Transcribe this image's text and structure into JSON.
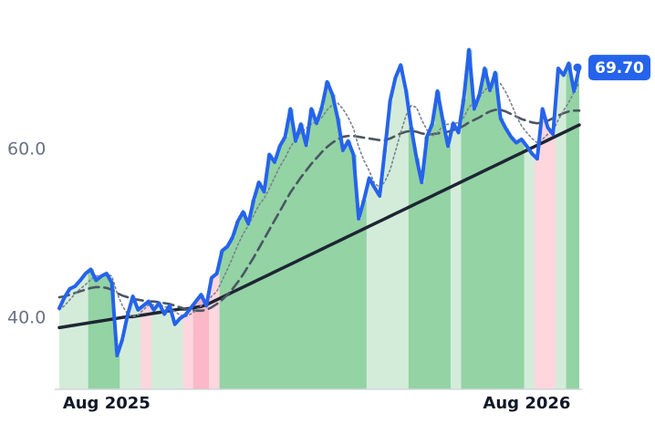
{
  "chart_data": {
    "type": "line",
    "categories": [
      null,
      null,
      null,
      null,
      null,
      null,
      null,
      null,
      null,
      "Aug 2025",
      null,
      null,
      null,
      null,
      null,
      null,
      null,
      null,
      null,
      null,
      null,
      null,
      null,
      null,
      null,
      null,
      null,
      null,
      null,
      null,
      null,
      null,
      null,
      null,
      null,
      null,
      null,
      null,
      null,
      null,
      null,
      null,
      null,
      null,
      null,
      null,
      null,
      null,
      null,
      null,
      null,
      null,
      null,
      null,
      null,
      null,
      null,
      null,
      null,
      null,
      null,
      null,
      null,
      null,
      null,
      null,
      null,
      null,
      null,
      null,
      null,
      null,
      null,
      null,
      null,
      null,
      null,
      null,
      null,
      null,
      null,
      null,
      null,
      null,
      null,
      null,
      null,
      null,
      null,
      "Aug 2026",
      null,
      null,
      null,
      null,
      null,
      null,
      null,
      null,
      null,
      null
    ],
    "series": [
      {
        "color": "#2563eb",
        "style": "solid",
        "width": 4,
        "values": [
          41.2,
          42.5,
          43.5,
          43.8,
          44.5,
          45.3,
          45.8,
          44.5,
          45.0,
          45.3,
          44.2,
          35.6,
          37.5,
          40.4,
          42.6,
          41.0,
          41.5,
          42.0,
          41.0,
          41.8,
          40.5,
          41.5,
          39.3,
          40.0,
          40.4,
          41.2,
          42.0,
          42.8,
          41.5,
          44.8,
          45.3,
          48.0,
          48.5,
          49.6,
          51.5,
          52.6,
          51.2,
          54.0,
          56.1,
          55.0,
          59.4,
          58.5,
          60.4,
          61.5,
          64.8,
          61.0,
          63.0,
          60.5,
          64.8,
          63.1,
          65.0,
          68.0,
          66.5,
          63.7,
          59.9,
          61.0,
          59.4,
          51.8,
          54.0,
          56.6,
          55.5,
          54.5,
          60.0,
          65.8,
          68.5,
          70.0,
          67.0,
          62.6,
          59.0,
          56.1,
          61.5,
          63.0,
          66.9,
          63.5,
          60.4,
          63.1,
          62.0,
          66.0,
          71.8,
          64.8,
          66.5,
          69.6,
          67.0,
          69.1,
          63.7,
          62.5,
          61.5,
          60.8,
          61.2,
          60.4,
          59.5,
          58.9,
          64.8,
          62.6,
          61.8,
          69.6,
          68.8,
          70.2,
          66.9,
          69.7
        ],
        "value_labels": [
          null,
          null,
          null,
          null,
          null,
          null,
          null,
          null,
          null,
          null,
          null,
          null,
          null,
          null,
          null,
          null,
          null,
          null,
          null,
          null,
          null,
          null,
          null,
          null,
          null,
          null,
          null,
          null,
          null,
          null,
          null,
          null,
          null,
          null,
          null,
          null,
          null,
          null,
          null,
          null,
          null,
          null,
          null,
          null,
          null,
          null,
          null,
          null,
          null,
          null,
          null,
          null,
          null,
          null,
          null,
          null,
          null,
          null,
          null,
          null,
          null,
          null,
          null,
          null,
          null,
          null,
          null,
          null,
          null,
          null,
          null,
          null,
          null,
          null,
          null,
          null,
          null,
          null,
          null,
          null,
          null,
          null,
          null,
          null,
          null,
          null,
          null,
          null,
          null,
          null,
          null,
          null,
          null,
          null,
          null,
          null,
          null,
          null,
          null,
          "69.70"
        ]
      },
      {
        "color": "#7b8190",
        "style": "dotted",
        "width": 1.6,
        "values": [
          41.0,
          41.5,
          42.2,
          42.9,
          43.5,
          44.0,
          44.6,
          45.0,
          45.1,
          45.2,
          45.0,
          43.0,
          41.5,
          40.5,
          40.2,
          40.4,
          41.0,
          41.6,
          41.6,
          41.6,
          41.4,
          41.2,
          40.8,
          40.4,
          40.2,
          40.5,
          40.9,
          41.5,
          42.0,
          42.6,
          43.2,
          44.5,
          45.8,
          47.2,
          48.7,
          50.0,
          51.0,
          52.2,
          53.4,
          54.2,
          55.4,
          56.7,
          58.0,
          59.0,
          60.3,
          61.2,
          62.0,
          62.5,
          63.0,
          63.3,
          63.8,
          64.7,
          65.3,
          65.5,
          64.8,
          63.8,
          62.5,
          60.3,
          58.7,
          57.5,
          56.0,
          55.5,
          56.2,
          57.6,
          59.8,
          62.0,
          64.0,
          65.2,
          65.0,
          63.5,
          62.3,
          61.6,
          62.0,
          62.8,
          63.0,
          63.0,
          63.2,
          63.8,
          65.0,
          65.6,
          66.2,
          67.0,
          67.6,
          68.0,
          67.8,
          66.8,
          65.5,
          64.0,
          62.8,
          62.0,
          61.3,
          60.8,
          61.2,
          61.8,
          62.2,
          63.5,
          64.6,
          65.6,
          66.8,
          67.9
        ]
      },
      {
        "color": "#4b5563",
        "style": "dashed",
        "width": 2.6,
        "values": [
          42.5,
          42.6,
          42.8,
          43.0,
          43.2,
          43.4,
          43.6,
          43.7,
          43.7,
          43.6,
          43.4,
          43.0,
          42.7,
          42.5,
          42.3,
          42.2,
          42.1,
          42.0,
          42.0,
          41.9,
          41.8,
          41.7,
          41.5,
          41.3,
          41.1,
          41.0,
          40.9,
          40.9,
          41.0,
          41.3,
          41.7,
          42.2,
          42.8,
          43.5,
          44.3,
          45.2,
          46.2,
          47.2,
          48.3,
          49.4,
          50.5,
          51.6,
          52.7,
          53.8,
          54.9,
          55.8,
          56.7,
          57.5,
          58.3,
          59.0,
          59.7,
          60.3,
          60.8,
          61.2,
          61.5,
          61.6,
          61.6,
          61.5,
          61.4,
          61.3,
          61.2,
          61.1,
          61.1,
          61.3,
          61.6,
          61.9,
          62.1,
          62.2,
          62.1,
          61.9,
          61.8,
          61.8,
          61.9,
          62.0,
          62.1,
          62.3,
          62.5,
          62.8,
          63.2,
          63.5,
          63.8,
          64.2,
          64.5,
          64.7,
          64.7,
          64.5,
          64.2,
          63.9,
          63.6,
          63.4,
          63.2,
          63.1,
          63.2,
          63.4,
          63.7,
          64.0,
          64.3,
          64.5,
          64.6,
          64.6
        ]
      },
      {
        "color": "#1e2533",
        "style": "solid",
        "width": 3.5,
        "values": [
          38.9,
          39.0,
          39.1,
          39.2,
          39.3,
          39.4,
          39.5,
          39.6,
          39.7,
          39.8,
          39.9,
          40.0,
          40.1,
          40.2,
          40.2,
          40.3,
          40.4,
          40.5,
          40.6,
          40.7,
          40.8,
          40.9,
          41.0,
          41.1,
          41.1,
          41.2,
          41.3,
          41.4,
          41.6,
          41.9,
          42.2,
          42.5,
          42.8,
          43.1,
          43.4,
          43.7,
          44.0,
          44.3,
          44.6,
          44.9,
          45.2,
          45.5,
          45.8,
          46.1,
          46.4,
          46.7,
          47.0,
          47.3,
          47.6,
          47.9,
          48.2,
          48.5,
          48.8,
          49.1,
          49.4,
          49.7,
          50.0,
          50.3,
          50.6,
          50.9,
          51.2,
          51.5,
          51.8,
          52.1,
          52.4,
          52.7,
          53.0,
          53.3,
          53.6,
          53.9,
          54.2,
          54.5,
          54.8,
          55.1,
          55.4,
          55.7,
          56.0,
          56.3,
          56.6,
          56.9,
          57.2,
          57.5,
          57.8,
          58.1,
          58.4,
          58.7,
          59.0,
          59.3,
          59.6,
          59.9,
          60.2,
          60.5,
          60.8,
          61.1,
          61.4,
          61.7,
          62.0,
          62.3,
          62.6,
          62.9
        ]
      }
    ],
    "bands": [
      {
        "from": 0,
        "to": 5,
        "color": "#d3ecd9"
      },
      {
        "from": 6,
        "to": 11,
        "color": "#93d3a4"
      },
      {
        "from": 12,
        "to": 15,
        "color": "#d3ecd9"
      },
      {
        "from": 16,
        "to": 17,
        "color": "#fdd6de"
      },
      {
        "from": 18,
        "to": 23,
        "color": "#d3ecd9"
      },
      {
        "from": 24,
        "to": 25,
        "color": "#fdd6de"
      },
      {
        "from": 26,
        "to": 28,
        "color": "#fbb8c6"
      },
      {
        "from": 29,
        "to": 30,
        "color": "#fdd6de"
      },
      {
        "from": 31,
        "to": 58,
        "color": "#93d3a4"
      },
      {
        "from": 59,
        "to": 66,
        "color": "#d3ecd9"
      },
      {
        "from": 67,
        "to": 74,
        "color": "#93d3a4"
      },
      {
        "from": 75,
        "to": 76,
        "color": "#d3ecd9"
      },
      {
        "from": 77,
        "to": 88,
        "color": "#93d3a4"
      },
      {
        "from": 89,
        "to": 90,
        "color": "#d3ecd9"
      },
      {
        "from": 91,
        "to": 94,
        "color": "#fdd6de"
      },
      {
        "from": 95,
        "to": 96,
        "color": "#d3ecd9"
      },
      {
        "from": 97,
        "to": 99,
        "color": "#93d3a4"
      }
    ],
    "ylim": [
      31.6,
      77.7
    ],
    "yticks": [
      {
        "value": 40,
        "label": "40.0"
      },
      {
        "value": 60,
        "label": "60.0"
      }
    ],
    "grid": false
  }
}
